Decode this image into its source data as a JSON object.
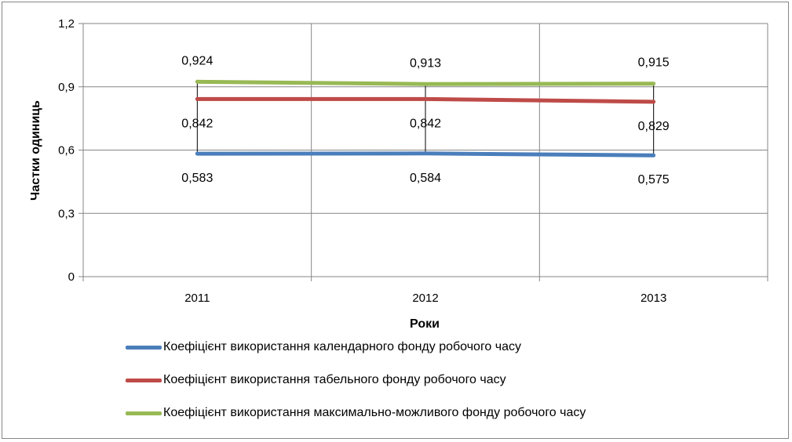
{
  "chart_data": {
    "type": "line",
    "title": "",
    "xlabel": "Роки",
    "ylabel": "Частки одиниць",
    "categories": [
      "2011",
      "2012",
      "2013"
    ],
    "ylim": [
      0,
      1.2
    ],
    "yticks": [
      "0",
      "0,3",
      "0,6",
      "0,9",
      "1,2"
    ],
    "grid": true,
    "legend_position": "bottom",
    "series": [
      {
        "name": "Коефіцієнт використання календарного фонду робочого часу",
        "values": [
          0.583,
          0.584,
          0.575
        ],
        "labels": [
          "0,583",
          "0,584",
          "0,575"
        ],
        "color": "#4a7ebb"
      },
      {
        "name": "Коефіцієнт використання табельного фонду робочого часу",
        "values": [
          0.842,
          0.842,
          0.829
        ],
        "labels": [
          "0,842",
          "0,842",
          "0,829"
        ],
        "color": "#be4b48"
      },
      {
        "name": "Коефіцієнт використання максимально-можливого фонду робочого часу",
        "values": [
          0.924,
          0.913,
          0.915
        ],
        "labels": [
          "0,924",
          "0,913",
          "0,915"
        ],
        "color": "#98b954"
      }
    ]
  }
}
